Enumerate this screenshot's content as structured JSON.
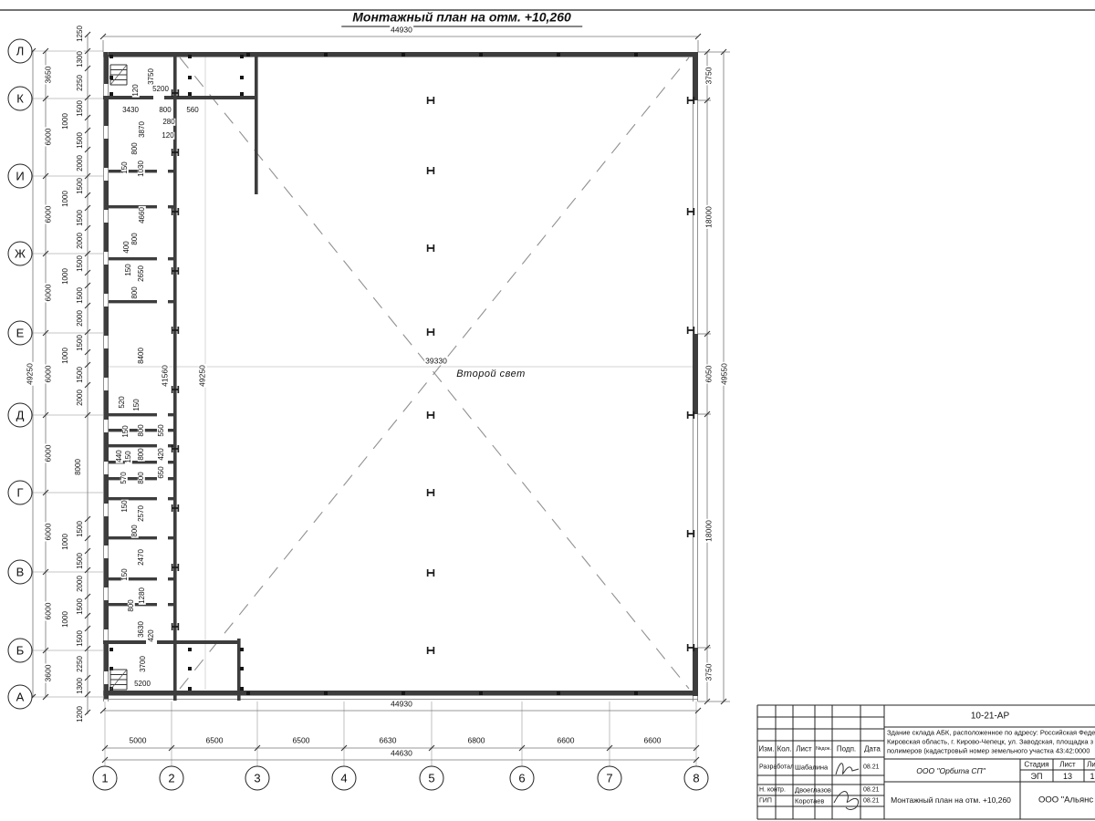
{
  "title": "Монтажный план на отм. +10,260",
  "labels": {
    "second_light": "Второй свет"
  },
  "axes": {
    "rows": [
      "Л",
      "К",
      "И",
      "Ж",
      "Е",
      "Д",
      "Г",
      "В",
      "Б",
      "А"
    ],
    "cols": [
      "1",
      "2",
      "3",
      "4",
      "5",
      "6",
      "7",
      "8"
    ]
  },
  "dims": {
    "top_overall": "44930",
    "bottom_overall": "44930",
    "bottom_spans": [
      "5000",
      "6500",
      "6500",
      "6630",
      "6800",
      "6600",
      "6600"
    ],
    "bottom_total": "44630",
    "left_overall": "49250",
    "left_spans": [
      "3650",
      "6000",
      "6000",
      "6000",
      "6000",
      "6000",
      "6000",
      "6000",
      "3600"
    ],
    "left_chain": [
      "1250",
      "1300",
      "2250",
      "1500",
      "1000",
      "1500",
      "2000",
      "1500",
      "1000",
      "1500",
      "2000",
      "1500",
      "1000",
      "1500",
      "2000",
      "1500",
      "1000",
      "1500",
      "2000",
      "8000",
      "1500",
      "1000",
      "1500",
      "2000",
      "1500",
      "1000",
      "1500",
      "2250",
      "1300",
      "1200"
    ],
    "right_chain": [
      "3750",
      "18000",
      "6050",
      "18000",
      "3750"
    ],
    "right_overall": "49550",
    "inner_vertical": [
      "41560",
      "49250"
    ],
    "center_width": "39330",
    "room_dims": [
      "3750",
      "120",
      "5200",
      "3430",
      "800",
      "560",
      "280",
      "120",
      "3870",
      "800",
      "150",
      "1030",
      "4660",
      "800",
      "400",
      "150",
      "2650",
      "800",
      "8400",
      "520",
      "150",
      "150",
      "800",
      "550",
      "440",
      "150",
      "800",
      "420",
      "650",
      "570",
      "800",
      "150",
      "2570",
      "800",
      "2470",
      "150",
      "1280",
      "800",
      "3630",
      "420",
      "3700",
      "5200"
    ]
  },
  "titleblock": {
    "code": "10-21-АР",
    "project_lines": [
      "Здание склада АБК, расположенное по адресу: Российская Феде",
      "Кировская область, г. Кирово-Чепецк, ул. Заводская, площадка з",
      "полимеров (кадастровый номер земельного участка 43:42:0000"
    ],
    "columns": [
      "Изм.",
      "Кол.",
      "Лист",
      "№док.",
      "Подп.",
      "Дата"
    ],
    "rows": [
      {
        "role": "Разработал",
        "name": "Шабалина",
        "date": "08.21"
      },
      {
        "role": "Н. контр.",
        "name": "Двоеглазов",
        "date": "08.21"
      },
      {
        "role": "ГИП",
        "name": "Коротаев",
        "date": "08.21"
      }
    ],
    "org": "ООО \"Орбита СП\"",
    "stage_label": "Стадия",
    "sheet_label": "Лист",
    "sheets_label": "Ли",
    "stage": "ЭП",
    "sheet": "13",
    "sheets": "1",
    "doc_title": "Монтажный план на отм. +10,260",
    "company": "ООО \"Альянс"
  },
  "colors": {
    "wall": "#3d3d3d",
    "line": "#777777",
    "tick": "#333333",
    "dash": "#909090"
  }
}
